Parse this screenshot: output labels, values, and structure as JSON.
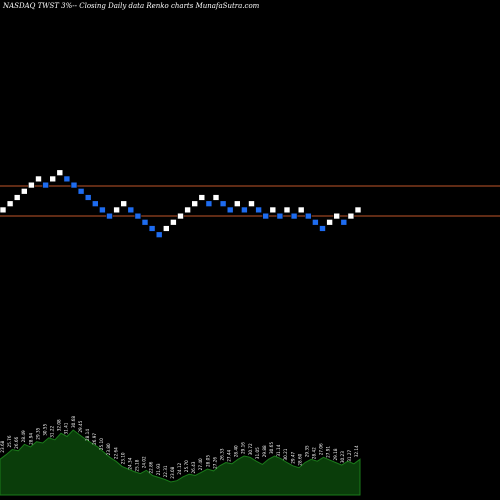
{
  "chart_data": {
    "type": "renko",
    "title": "NASDAQ TWST 3%-- Closing Daily data Renko charts MunafaSutra.com",
    "colors": {
      "background": "#000000",
      "up_brick": "#ffffff",
      "down_brick": "#1e6cf0",
      "reference_lines": "#c0562a",
      "volume_area": "#0a3d0a",
      "volume_outline": "#1a7a1a",
      "volume_labels": "#ffffff"
    },
    "reference_lines": [
      "upper",
      "lower"
    ],
    "bricks": [
      {
        "dir": "up",
        "level": 0
      },
      {
        "dir": "up",
        "level": 1
      },
      {
        "dir": "up",
        "level": 2
      },
      {
        "dir": "up",
        "level": 3
      },
      {
        "dir": "up",
        "level": 4
      },
      {
        "dir": "up",
        "level": 5
      },
      {
        "dir": "down",
        "level": 4
      },
      {
        "dir": "up",
        "level": 5
      },
      {
        "dir": "up",
        "level": 6
      },
      {
        "dir": "down",
        "level": 5
      },
      {
        "dir": "down",
        "level": 4
      },
      {
        "dir": "down",
        "level": 3
      },
      {
        "dir": "down",
        "level": 2
      },
      {
        "dir": "down",
        "level": 1
      },
      {
        "dir": "down",
        "level": 0
      },
      {
        "dir": "down",
        "level": -1
      },
      {
        "dir": "up",
        "level": 0
      },
      {
        "dir": "up",
        "level": 1
      },
      {
        "dir": "down",
        "level": 0
      },
      {
        "dir": "down",
        "level": -1
      },
      {
        "dir": "down",
        "level": -2
      },
      {
        "dir": "down",
        "level": -3
      },
      {
        "dir": "down",
        "level": -4
      },
      {
        "dir": "up",
        "level": -3
      },
      {
        "dir": "up",
        "level": -2
      },
      {
        "dir": "up",
        "level": -1
      },
      {
        "dir": "up",
        "level": 0
      },
      {
        "dir": "up",
        "level": 1
      },
      {
        "dir": "up",
        "level": 2
      },
      {
        "dir": "down",
        "level": 1
      },
      {
        "dir": "up",
        "level": 2
      },
      {
        "dir": "down",
        "level": 1
      },
      {
        "dir": "down",
        "level": 0
      },
      {
        "dir": "up",
        "level": 1
      },
      {
        "dir": "down",
        "level": 0
      },
      {
        "dir": "up",
        "level": 1
      },
      {
        "dir": "down",
        "level": 0
      },
      {
        "dir": "down",
        "level": -1
      },
      {
        "dir": "up",
        "level": 0
      },
      {
        "dir": "down",
        "level": -1
      },
      {
        "dir": "up",
        "level": 0
      },
      {
        "dir": "down",
        "level": -1
      },
      {
        "dir": "up",
        "level": 0
      },
      {
        "dir": "down",
        "level": -1
      },
      {
        "dir": "down",
        "level": -2
      },
      {
        "dir": "down",
        "level": -3
      },
      {
        "dir": "up",
        "level": -2
      },
      {
        "dir": "up",
        "level": -1
      },
      {
        "dir": "down",
        "level": -2
      },
      {
        "dir": "up",
        "level": -1
      },
      {
        "dir": "up",
        "level": 0
      }
    ],
    "volume_profile": [
      0.55,
      0.62,
      0.7,
      0.68,
      0.78,
      0.74,
      0.82,
      0.8,
      0.88,
      0.85,
      0.95,
      0.9,
      1.0,
      0.93,
      0.86,
      0.8,
      0.74,
      0.66,
      0.58,
      0.52,
      0.44,
      0.4,
      0.36,
      0.33,
      0.38,
      0.3,
      0.27,
      0.24,
      0.2,
      0.22,
      0.28,
      0.32,
      0.3,
      0.35,
      0.4,
      0.37,
      0.45,
      0.5,
      0.48,
      0.55,
      0.6,
      0.58,
      0.52,
      0.47,
      0.55,
      0.6,
      0.56,
      0.5,
      0.45,
      0.42,
      0.5,
      0.55,
      0.52,
      0.58,
      0.54,
      0.5,
      0.46,
      0.52,
      0.48,
      0.55
    ],
    "volume_labels": [
      "23.68",
      "25.76",
      "26.66",
      "28.49",
      "28.94",
      "29.35",
      "30.55",
      "31.22",
      "32.08",
      "31.41",
      "30.68",
      "29.45",
      "28.14",
      "26.97",
      "25.10",
      "23.80",
      "22.64",
      "23.10",
      "24.34",
      "25.18",
      "24.02",
      "22.86",
      "21.93",
      "22.31",
      "23.08",
      "24.12",
      "25.70",
      "26.43",
      "27.40",
      "28.05",
      "27.26",
      "26.33",
      "27.44",
      "28.40",
      "29.16",
      "30.72",
      "31.05",
      "29.88",
      "30.65",
      "31.14",
      "30.21",
      "29.47",
      "28.60",
      "29.35",
      "28.42",
      "27.06",
      "27.91",
      "29.18",
      "30.23",
      "31.27",
      "32.14"
    ]
  }
}
